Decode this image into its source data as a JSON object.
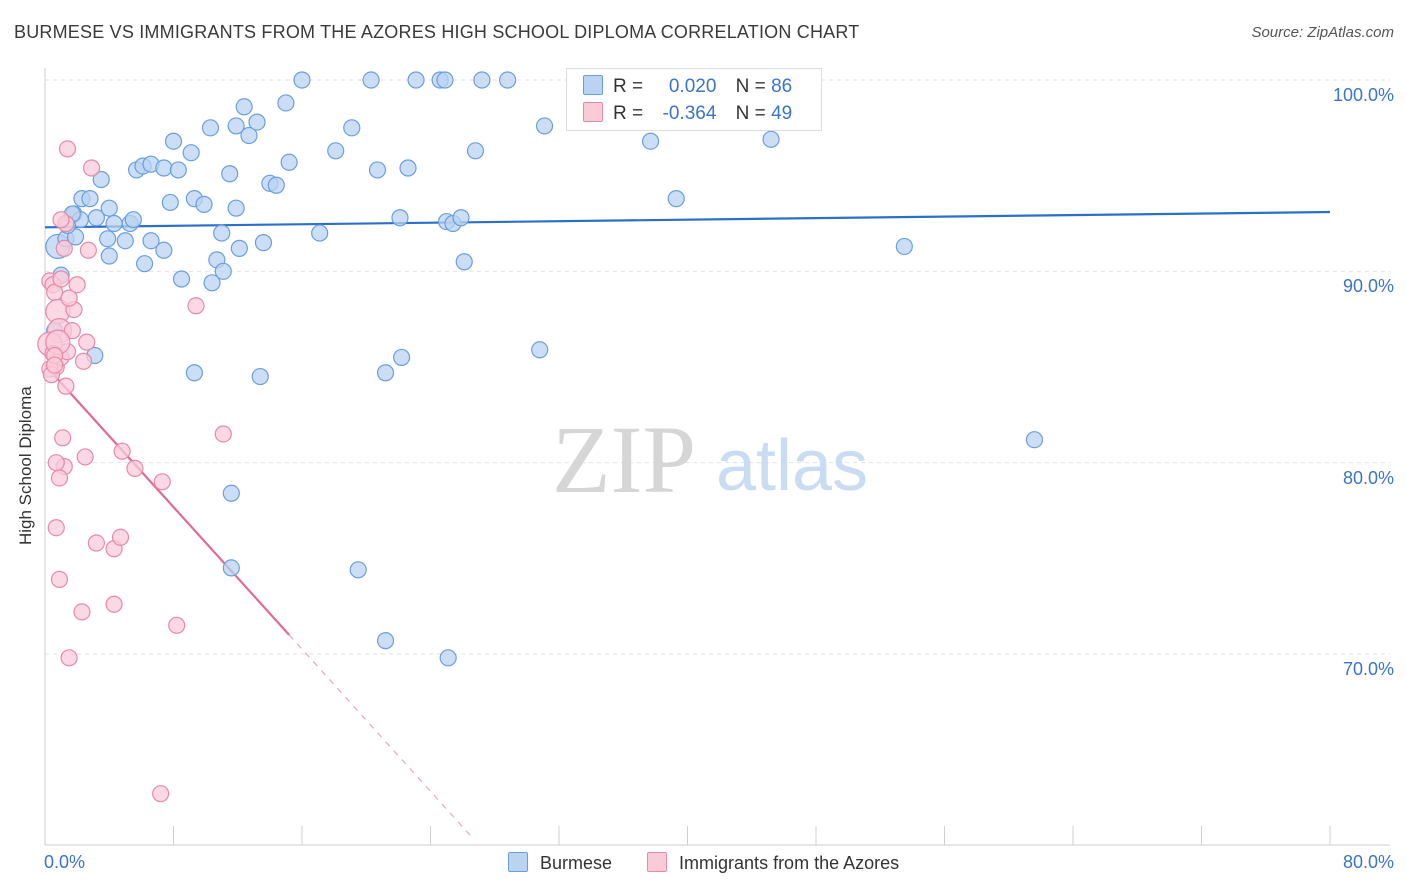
{
  "title": "BURMESE VS IMMIGRANTS FROM THE AZORES HIGH SCHOOL DIPLOMA CORRELATION CHART",
  "source": "Source: ZipAtlas.com",
  "watermark": {
    "zip": "ZIP",
    "atlas": "atlas"
  },
  "legend": {
    "r_label": "R =",
    "n_label": "N =",
    "rows": [
      {
        "series": "Burmese",
        "r": "0.020",
        "n": "86",
        "fill": "#b9d3f1",
        "stroke": "#6a9fdc"
      },
      {
        "series": "Immigrants from the Azores",
        "r": "-0.364",
        "n": "49",
        "fill": "#f9cbd9",
        "stroke": "#e68aa8"
      }
    ]
  },
  "chart_data": {
    "type": "scatter",
    "title": "BURMESE VS IMMIGRANTS FROM THE AZORES HIGH SCHOOL DIPLOMA CORRELATION CHART",
    "xlabel": "",
    "ylabel": "High School Diploma",
    "xlim": [
      0,
      80
    ],
    "ylim": [
      60,
      100.5
    ],
    "x_tick_labels": [
      "0.0%",
      "80.0%"
    ],
    "y_ticks": [
      70,
      80,
      90,
      100
    ],
    "y_tick_labels": [
      "70.0%",
      "80.0%",
      "90.0%",
      "100.0%"
    ],
    "grid": true,
    "series": [
      {
        "name": "Burmese",
        "color": "#6a9fdc",
        "fill": "#b9d3f1",
        "trend": {
          "x": [
            0,
            80
          ],
          "y": [
            92.3,
            93.1
          ],
          "dashed_extension": false
        },
        "points": [
          [
            0.8,
            91.3
          ],
          [
            1.0,
            89.8
          ],
          [
            1.3,
            91.7
          ],
          [
            1.8,
            93.0
          ],
          [
            2.3,
            93.8
          ],
          [
            2.8,
            93.8
          ],
          [
            3.2,
            92.8
          ],
          [
            3.5,
            94.8
          ],
          [
            3.9,
            91.7
          ],
          [
            4.3,
            92.5
          ],
          [
            4.0,
            93.3
          ],
          [
            5.0,
            91.6
          ],
          [
            5.3,
            92.5
          ],
          [
            5.7,
            95.3
          ],
          [
            6.1,
            95.5
          ],
          [
            6.6,
            95.6
          ],
          [
            7.4,
            95.4
          ],
          [
            8.3,
            95.3
          ],
          [
            8.0,
            96.8
          ],
          [
            9.1,
            96.2
          ],
          [
            9.3,
            93.8
          ],
          [
            9.9,
            93.5
          ],
          [
            10.3,
            97.5
          ],
          [
            7.8,
            93.6
          ],
          [
            11.0,
            92.0
          ],
          [
            11.5,
            95.1
          ],
          [
            11.9,
            93.3
          ],
          [
            11.9,
            97.6
          ],
          [
            12.4,
            98.6
          ],
          [
            12.7,
            97.1
          ],
          [
            13.2,
            97.8
          ],
          [
            14.0,
            94.6
          ],
          [
            14.4,
            94.5
          ],
          [
            15.0,
            98.8
          ],
          [
            15.2,
            95.7
          ],
          [
            16.0,
            100.0
          ],
          [
            17.1,
            92.0
          ],
          [
            18.1,
            96.3
          ],
          [
            19.1,
            97.5
          ],
          [
            20.3,
            100.0
          ],
          [
            20.7,
            95.3
          ],
          [
            23.1,
            100.0
          ],
          [
            24.6,
            100.0
          ],
          [
            24.9,
            100.0
          ],
          [
            25.0,
            92.6
          ],
          [
            25.4,
            92.5
          ],
          [
            25.9,
            92.8
          ],
          [
            26.8,
            96.3
          ],
          [
            27.2,
            100.0
          ],
          [
            28.8,
            100.0
          ],
          [
            31.1,
            97.6
          ],
          [
            37.7,
            96.8
          ],
          [
            39.3,
            93.8
          ],
          [
            45.2,
            96.9
          ],
          [
            10.7,
            90.6
          ],
          [
            11.1,
            90.0
          ],
          [
            10.4,
            89.4
          ],
          [
            8.5,
            89.6
          ],
          [
            7.4,
            91.1
          ],
          [
            6.2,
            90.4
          ],
          [
            4.0,
            90.8
          ],
          [
            2.2,
            92.7
          ],
          [
            1.9,
            91.8
          ],
          [
            0.6,
            86.9
          ],
          [
            3.1,
            85.6
          ],
          [
            22.1,
            92.8
          ],
          [
            22.6,
            95.4
          ],
          [
            26.1,
            90.5
          ],
          [
            12.1,
            91.2
          ],
          [
            13.6,
            91.5
          ],
          [
            30.8,
            85.9
          ],
          [
            22.2,
            85.5
          ],
          [
            21.2,
            84.7
          ],
          [
            13.4,
            84.5
          ],
          [
            11.6,
            78.4
          ],
          [
            11.6,
            74.5
          ],
          [
            19.5,
            74.4
          ],
          [
            21.2,
            70.7
          ],
          [
            25.1,
            69.8
          ],
          [
            53.5,
            91.3
          ],
          [
            61.6,
            81.2
          ],
          [
            5.5,
            92.7
          ],
          [
            1.7,
            93.0
          ],
          [
            9.3,
            84.7
          ],
          [
            6.6,
            91.6
          ],
          [
            1.4,
            92.4
          ]
        ]
      },
      {
        "name": "Immigrants from the Azores",
        "color": "#e68aa8",
        "fill": "#f9cbd9",
        "trend": {
          "x": [
            0,
            15.2
          ],
          "y": [
            85.1,
            71.0
          ],
          "dashed_extension": {
            "x": [
              15.2,
              26.5
            ],
            "y": [
              71.0,
              60.5
            ]
          }
        },
        "points": [
          [
            0.3,
            89.5
          ],
          [
            0.5,
            89.3
          ],
          [
            0.6,
            88.9
          ],
          [
            0.8,
            87.9
          ],
          [
            0.9,
            86.9
          ],
          [
            0.3,
            86.2
          ],
          [
            0.5,
            85.7
          ],
          [
            0.7,
            85.0
          ],
          [
            0.3,
            84.9
          ],
          [
            0.4,
            84.6
          ],
          [
            1.0,
            85.5
          ],
          [
            1.3,
            84.0
          ],
          [
            1.4,
            85.8
          ],
          [
            1.7,
            86.9
          ],
          [
            1.8,
            88.0
          ],
          [
            1.5,
            88.6
          ],
          [
            2.0,
            89.3
          ],
          [
            2.6,
            86.3
          ],
          [
            2.4,
            85.3
          ],
          [
            2.7,
            91.1
          ],
          [
            1.3,
            92.5
          ],
          [
            1.4,
            96.4
          ],
          [
            2.9,
            95.4
          ],
          [
            1.2,
            91.2
          ],
          [
            1.0,
            92.7
          ],
          [
            9.4,
            88.2
          ],
          [
            0.8,
            86.3
          ],
          [
            1.2,
            79.8
          ],
          [
            1.1,
            81.3
          ],
          [
            0.7,
            80.0
          ],
          [
            0.9,
            79.2
          ],
          [
            2.5,
            80.3
          ],
          [
            4.8,
            80.6
          ],
          [
            5.6,
            79.7
          ],
          [
            7.3,
            79.0
          ],
          [
            11.1,
            81.5
          ],
          [
            0.7,
            76.6
          ],
          [
            3.2,
            75.8
          ],
          [
            4.3,
            75.5
          ],
          [
            4.7,
            76.1
          ],
          [
            0.9,
            73.9
          ],
          [
            4.3,
            72.6
          ],
          [
            2.3,
            72.2
          ],
          [
            8.2,
            71.5
          ],
          [
            1.5,
            69.8
          ],
          [
            7.2,
            62.7
          ],
          [
            0.6,
            85.6
          ],
          [
            1.0,
            89.6
          ],
          [
            0.6,
            85.1
          ]
        ]
      }
    ]
  }
}
